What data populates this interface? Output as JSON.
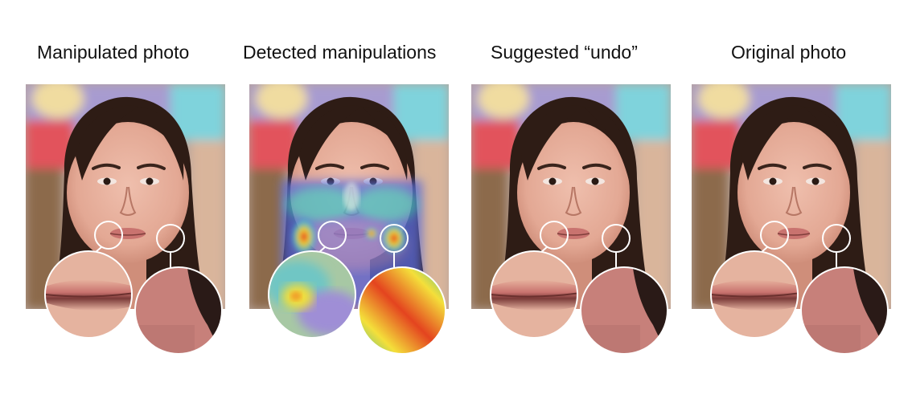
{
  "panels": [
    {
      "title": "Manipulated photo",
      "variant": "manipulated"
    },
    {
      "title": "Detected manipulations",
      "variant": "heatmap"
    },
    {
      "title": "Suggested “undo”",
      "variant": "undo"
    },
    {
      "title": "Original photo",
      "variant": "original"
    }
  ],
  "colors": {
    "background": "#ffffff",
    "skin": "#e3a894",
    "hair": "#2e1c15",
    "lip": "#c9736f",
    "bokeh_red": "#e2525c",
    "bokeh_cyan": "#7fd3dc",
    "bokeh_yellow": "#f0dca0",
    "bokeh_purple": "#a79bd0",
    "zoom_ring": "#ffffff"
  }
}
